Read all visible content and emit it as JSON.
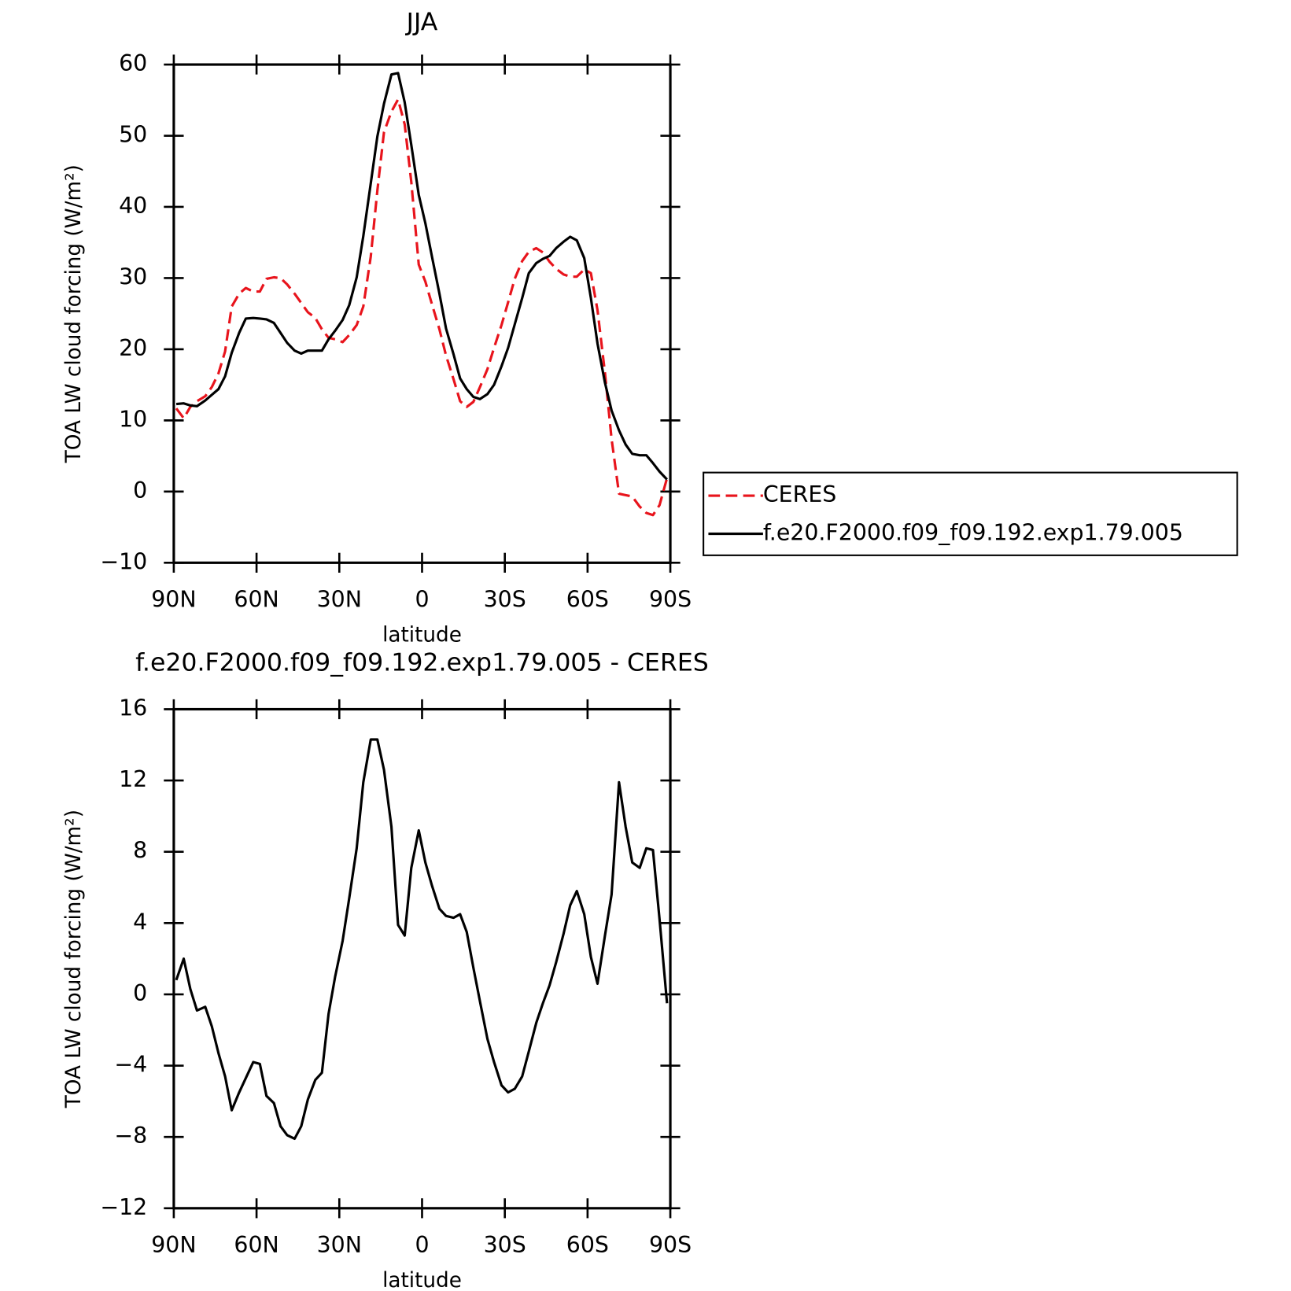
{
  "chart_data": [
    {
      "type": "line",
      "title": "JJA",
      "ylabel": "TOA LW cloud forcing (W/m²)",
      "xlabel": "latitude",
      "xlim": [
        90,
        -90
      ],
      "xticks": [
        {
          "value": 90,
          "label": "90N"
        },
        {
          "value": 60,
          "label": "60N"
        },
        {
          "value": 30,
          "label": "30N"
        },
        0,
        {
          "value": -30,
          "label": "30S"
        },
        {
          "value": -60,
          "label": "60S"
        },
        {
          "value": -90,
          "label": "90S"
        }
      ],
      "ylim": [
        -10,
        60
      ],
      "yticks": [
        {
          "value": -10,
          "label": "−10"
        },
        0,
        10,
        20,
        30,
        40,
        50,
        60
      ],
      "legend": "right",
      "x": [
        89.1,
        86.4,
        84.0,
        81.6,
        78.6,
        76.2,
        73.8,
        71.4,
        69.0,
        66.3,
        63.9,
        61.2,
        58.8,
        56.4,
        53.7,
        51.3,
        48.9,
        46.2,
        43.8,
        41.4,
        38.7,
        36.3,
        33.9,
        31.5,
        28.8,
        26.4,
        23.7,
        21.3,
        18.6,
        16.2,
        13.8,
        11.1,
        8.7,
        6.3,
        3.9,
        1.2,
        -1.2,
        -3.6,
        -6.3,
        -8.7,
        -11.4,
        -13.8,
        -16.2,
        -18.6,
        -21.0,
        -23.7,
        -26.1,
        -28.8,
        -31.2,
        -33.6,
        -36.3,
        -38.7,
        -41.4,
        -43.8,
        -46.2,
        -48.6,
        -51.3,
        -53.7,
        -56.1,
        -58.8,
        -61.2,
        -63.6,
        -66.3,
        -68.7,
        -71.4,
        -73.8,
        -76.2,
        -78.9,
        -81.3,
        -83.7,
        -86.1,
        -88.8
      ],
      "series": [
        {
          "name": "CERES",
          "color": "#e8141c",
          "line_style": "dashed",
          "values": [
            11.7,
            10.3,
            11.9,
            12.7,
            13.4,
            14.7,
            16.6,
            19.7,
            26.0,
            27.8,
            28.6,
            28.1,
            28.1,
            29.9,
            30.1,
            30.0,
            29.1,
            27.8,
            26.5,
            25.2,
            24.4,
            22.8,
            21.6,
            21.4,
            21.0,
            22.0,
            23.4,
            26.0,
            33.0,
            42.3,
            50.5,
            53.4,
            55.1,
            51.6,
            43.5,
            31.9,
            29.5,
            26.3,
            22.8,
            19.1,
            15.8,
            12.7,
            11.9,
            12.6,
            14.7,
            17.2,
            20.2,
            23.4,
            26.6,
            29.9,
            32.4,
            33.7,
            34.2,
            33.6,
            32.3,
            31.3,
            30.5,
            30.2,
            30.2,
            31.2,
            30.7,
            25.5,
            16.7,
            7.4,
            -0.3,
            -0.5,
            -0.7,
            -2.1,
            -3.0,
            -3.3,
            -1.9,
            1.9
          ]
        },
        {
          "name": "f.e20.F2000.f09_f09.192.exp1.79.005",
          "color": "#000000",
          "line_style": "solid",
          "values": [
            12.3,
            12.4,
            12.1,
            12.0,
            12.8,
            13.6,
            14.4,
            16.2,
            19.5,
            22.3,
            24.3,
            24.4,
            24.3,
            24.2,
            23.7,
            22.3,
            20.9,
            19.8,
            19.4,
            19.8,
            19.8,
            19.8,
            21.4,
            22.6,
            24.1,
            26.2,
            30.1,
            35.9,
            43.3,
            49.9,
            54.5,
            58.6,
            58.8,
            54.7,
            48.7,
            41.7,
            37.7,
            33.0,
            27.8,
            22.9,
            19.3,
            15.9,
            14.4,
            13.3,
            13.0,
            13.7,
            15.0,
            17.6,
            20.2,
            23.5,
            27.2,
            30.7,
            32.1,
            32.7,
            33.1,
            34.2,
            35.1,
            35.8,
            35.3,
            32.8,
            27.2,
            20.8,
            15.3,
            11.4,
            8.6,
            6.6,
            5.3,
            5.1,
            5.1,
            4.0,
            2.8,
            1.7
          ]
        }
      ]
    },
    {
      "type": "line",
      "title": "f.e20.F2000.f09_f09.192.exp1.79.005 - CERES",
      "ylabel": "TOA LW cloud forcing (W/m²)",
      "xlabel": "latitude",
      "xlim": [
        90,
        -90
      ],
      "xticks": [
        {
          "value": 90,
          "label": "90N"
        },
        {
          "value": 60,
          "label": "60N"
        },
        {
          "value": 30,
          "label": "30N"
        },
        0,
        {
          "value": -30,
          "label": "30S"
        },
        {
          "value": -60,
          "label": "60S"
        },
        {
          "value": -90,
          "label": "90S"
        }
      ],
      "ylim": [
        -12,
        16
      ],
      "yticks": [
        {
          "value": -12,
          "label": "−12"
        },
        {
          "value": -8,
          "label": "−8"
        },
        {
          "value": -4,
          "label": "−4"
        },
        0,
        4,
        8,
        12,
        16
      ],
      "color": "#000000",
      "x": [
        89.1,
        86.4,
        84.0,
        81.6,
        78.6,
        76.2,
        73.8,
        71.4,
        69.0,
        66.3,
        63.9,
        61.2,
        58.8,
        56.4,
        53.7,
        51.3,
        48.9,
        46.2,
        43.8,
        41.4,
        38.7,
        36.3,
        33.9,
        31.5,
        28.8,
        26.4,
        23.7,
        21.3,
        18.6,
        16.2,
        13.8,
        11.1,
        8.7,
        6.3,
        3.9,
        1.2,
        -1.2,
        -3.6,
        -6.3,
        -8.7,
        -11.4,
        -13.8,
        -16.2,
        -18.6,
        -21.0,
        -23.7,
        -26.1,
        -28.8,
        -31.2,
        -33.6,
        -36.3,
        -38.7,
        -41.4,
        -43.8,
        -46.2,
        -48.6,
        -51.3,
        -53.7,
        -56.1,
        -58.8,
        -61.2,
        -63.6,
        -66.3,
        -68.7,
        -71.4,
        -73.8,
        -76.2,
        -78.9,
        -81.3,
        -83.7,
        -86.1,
        -88.8
      ],
      "values": [
        0.8,
        2.0,
        0.3,
        -0.9,
        -0.7,
        -1.8,
        -3.3,
        -4.6,
        -6.5,
        -5.5,
        -4.7,
        -3.8,
        -3.9,
        -5.7,
        -6.1,
        -7.4,
        -7.9,
        -8.1,
        -7.4,
        -5.9,
        -4.8,
        -4.4,
        -1.1,
        1.0,
        3.0,
        5.4,
        8.2,
        11.9,
        14.3,
        14.3,
        12.6,
        9.4,
        3.9,
        3.3,
        7.1,
        9.2,
        7.4,
        6.1,
        4.8,
        4.4,
        4.3,
        4.5,
        3.5,
        1.5,
        -0.4,
        -2.5,
        -3.8,
        -5.1,
        -5.5,
        -5.3,
        -4.6,
        -3.2,
        -1.6,
        -0.5,
        0.5,
        1.8,
        3.4,
        5.0,
        5.8,
        4.5,
        2.1,
        0.6,
        3.3,
        5.6,
        11.9,
        9.4,
        7.4,
        7.1,
        8.2,
        8.1,
        4.2,
        -0.5
      ]
    }
  ]
}
